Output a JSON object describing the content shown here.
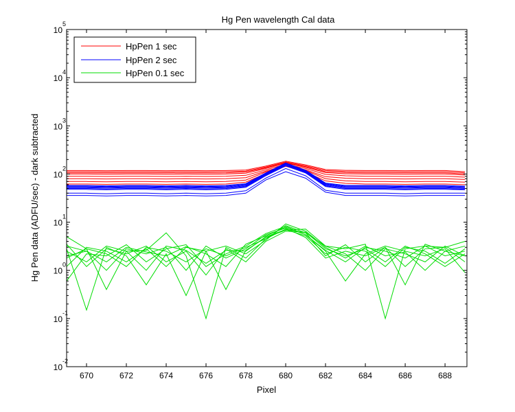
{
  "chart_data": {
    "type": "line",
    "title": "Hg Pen wavelength Cal data",
    "xlabel": "Pixel",
    "ylabel": "Hg Pen data (ADFU/sec) - dark subtracted",
    "xlim": [
      669,
      689.1
    ],
    "ylim": [
      0.01,
      100000
    ],
    "yscale": "log",
    "grid": false,
    "legend_position": "top-left",
    "x_ticks": [
      "670",
      "672",
      "674",
      "676",
      "678",
      "680",
      "682",
      "684",
      "686",
      "688"
    ],
    "y_ticks": [
      {
        "base": "10",
        "exp": "-2",
        "value": 0.01
      },
      {
        "base": "10",
        "exp": "-1",
        "value": 0.1
      },
      {
        "base": "10",
        "exp": "0",
        "value": 1
      },
      {
        "base": "10",
        "exp": "1",
        "value": 10
      },
      {
        "base": "10",
        "exp": "2",
        "value": 100
      },
      {
        "base": "10",
        "exp": "3",
        "value": 1000
      },
      {
        "base": "10",
        "exp": "4",
        "value": 10000
      },
      {
        "base": "10",
        "exp": "5",
        "value": 100000
      }
    ],
    "x": [
      669,
      670,
      671,
      672,
      673,
      674,
      675,
      676,
      677,
      678,
      679,
      680,
      681,
      682,
      683,
      684,
      685,
      686,
      687,
      688,
      689
    ],
    "series": [
      {
        "name": "HpPen 1 sec",
        "color": "#ff0000",
        "lines": [
          [
            118,
            118,
            117,
            118,
            118,
            117,
            118,
            117,
            118,
            121,
            146,
            185,
            155,
            124,
            119,
            118,
            118,
            117,
            118,
            118,
            112
          ],
          [
            112,
            112,
            111,
            112,
            112,
            111,
            112,
            111,
            112,
            115,
            140,
            178,
            148,
            118,
            113,
            112,
            112,
            111,
            112,
            112,
            106
          ],
          [
            106,
            106,
            105,
            106,
            106,
            105,
            106,
            105,
            106,
            110,
            135,
            172,
            142,
            112,
            107,
            106,
            106,
            105,
            106,
            106,
            100
          ],
          [
            100,
            100,
            99,
            100,
            100,
            99,
            100,
            99,
            100,
            104,
            130,
            168,
            138,
            107,
            101,
            100,
            100,
            99,
            100,
            100,
            95
          ],
          [
            90,
            90,
            89,
            90,
            90,
            89,
            90,
            89,
            90,
            94,
            122,
            160,
            130,
            98,
            92,
            90,
            90,
            89,
            90,
            90,
            86
          ],
          [
            80,
            80,
            79,
            80,
            80,
            79,
            80,
            79,
            80,
            84,
            115,
            150,
            122,
            88,
            82,
            80,
            80,
            79,
            80,
            80,
            77
          ],
          [
            70,
            70,
            69,
            70,
            70,
            69,
            70,
            69,
            70,
            75,
            110,
            150,
            118,
            80,
            72,
            70,
            70,
            69,
            70,
            70,
            68
          ],
          [
            62,
            62,
            61,
            62,
            62,
            61,
            62,
            61,
            62,
            68,
            102,
            145,
            110,
            72,
            64,
            62,
            62,
            61,
            62,
            62,
            60
          ]
        ]
      },
      {
        "name": "HpPen 2 sec",
        "color": "#0000ff",
        "lines": [
          [
            58,
            58,
            57,
            58,
            58,
            57,
            58,
            57,
            58,
            63,
            105,
            170,
            120,
            65,
            58,
            58,
            58,
            57,
            58,
            58,
            56
          ],
          [
            56,
            56,
            55,
            56,
            56,
            55,
            56,
            55,
            56,
            61,
            102,
            165,
            117,
            63,
            56,
            56,
            56,
            55,
            56,
            56,
            54
          ],
          [
            54,
            54,
            53,
            54,
            54,
            53,
            54,
            53,
            54,
            59,
            100,
            162,
            114,
            61,
            54,
            54,
            54,
            53,
            54,
            54,
            52
          ],
          [
            52,
            52,
            51,
            52,
            52,
            51,
            52,
            51,
            52,
            57,
            98,
            158,
            111,
            59,
            52,
            52,
            52,
            51,
            52,
            52,
            50
          ],
          [
            50,
            50,
            49,
            50,
            50,
            49,
            50,
            49,
            50,
            55,
            95,
            152,
            108,
            57,
            50,
            50,
            50,
            49,
            50,
            50,
            48
          ],
          [
            48,
            48,
            47,
            48,
            48,
            47,
            48,
            47,
            48,
            53,
            92,
            148,
            105,
            55,
            48,
            48,
            48,
            47,
            48,
            48,
            47
          ],
          [
            40,
            40,
            39,
            40,
            40,
            39,
            40,
            39,
            40,
            45,
            82,
            130,
            92,
            46,
            40,
            40,
            40,
            39,
            40,
            40,
            40
          ],
          [
            36,
            36,
            35,
            36,
            36,
            35,
            36,
            35,
            36,
            40,
            75,
            112,
            82,
            42,
            36,
            36,
            36,
            35,
            36,
            36,
            36
          ]
        ]
      },
      {
        "name": "HpPen 0.1 sec",
        "color": "#00dd00",
        "lines": [
          [
            3.2,
            2.5,
            1.5,
            3.0,
            2.4,
            2.0,
            3.1,
            2.2,
            1.2,
            3.5,
            5.2,
            7.8,
            5.5,
            2.6,
            1.5,
            3.0,
            2.5,
            1.8,
            3.2,
            2.0,
            2.5
          ],
          [
            1.8,
            2.8,
            2.2,
            1.2,
            3.0,
            2.5,
            1.5,
            2.8,
            2.0,
            3.0,
            4.5,
            8.5,
            6.0,
            3.2,
            2.2,
            1.0,
            2.8,
            2.2,
            1.5,
            3.2,
            2.0
          ],
          [
            2.5,
            1.5,
            3.2,
            2.5,
            1.0,
            3.2,
            2.6,
            1.4,
            2.6,
            2.5,
            5.0,
            7.0,
            5.2,
            2.2,
            3.0,
            2.5,
            1.2,
            3.0,
            2.5,
            1.4,
            2.8
          ],
          [
            1.2,
            3.0,
            2.5,
            1.5,
            2.8,
            1.2,
            3.0,
            2.5,
            3.2,
            2.2,
            4.2,
            9.2,
            6.5,
            3.0,
            1.8,
            3.2,
            2.0,
            2.4,
            1.0,
            2.5,
            3.2
          ],
          [
            2.0,
            2.5,
            1.0,
            2.8,
            2.2,
            3.0,
            1.0,
            3.2,
            1.8,
            2.8,
            5.5,
            7.5,
            4.8,
            1.8,
            2.5,
            2.0,
            3.0,
            1.2,
            2.8,
            3.0,
            1.5
          ],
          [
            3.5,
            1.2,
            2.8,
            2.2,
            3.2,
            1.5,
            2.5,
            0.8,
            2.8,
            1.5,
            4.0,
            6.5,
            6.2,
            2.8,
            2.0,
            2.8,
            1.5,
            3.2,
            2.2,
            1.2,
            2.2
          ],
          [
            0.6,
            2.2,
            2.0,
            3.4,
            1.5,
            2.8,
            3.4,
            1.2,
            2.2,
            3.2,
            5.8,
            8.2,
            5.5,
            2.5,
            0.6,
            2.2,
            3.2,
            2.5,
            2.0,
            2.8,
            0.9
          ],
          [
            2.8,
            0.15,
            3.0,
            2.0,
            0.5,
            2.2,
            0.3,
            2.5,
            0.4,
            2.6,
            4.8,
            6.8,
            7.2,
            3.2,
            2.8,
            3.5,
            0.1,
            2.8,
            3.2,
            3.0,
            4.0
          ],
          [
            5.0,
            2.8,
            0.4,
            2.5,
            2.6,
            6.0,
            2.0,
            0.1,
            3.0,
            1.8,
            4.5,
            7.2,
            6.0,
            2.0,
            3.4,
            1.5,
            3.0,
            0.5,
            3.5,
            2.5,
            2.0
          ]
        ]
      }
    ]
  }
}
